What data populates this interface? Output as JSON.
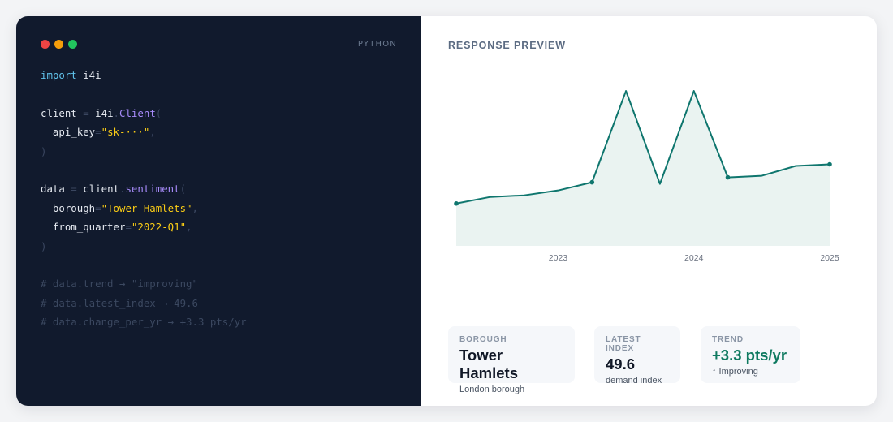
{
  "code_panel": {
    "language": "PYTHON",
    "lines": [
      [
        {
          "t": "import",
          "c": "kw"
        },
        {
          "t": " i4i",
          "c": ""
        }
      ],
      [],
      [
        {
          "t": "client",
          "c": ""
        },
        {
          "t": " = ",
          "c": "pn"
        },
        {
          "t": "i4i",
          "c": ""
        },
        {
          "t": ".",
          "c": "pn"
        },
        {
          "t": "Client",
          "c": "fn"
        },
        {
          "t": "(",
          "c": "pn"
        }
      ],
      [
        {
          "t": "  api_key",
          "c": ""
        },
        {
          "t": "=",
          "c": "pn"
        },
        {
          "t": "\"sk-···\"",
          "c": "str"
        },
        {
          "t": ",",
          "c": "pn"
        }
      ],
      [
        {
          "t": ")",
          "c": "pn"
        }
      ],
      [],
      [
        {
          "t": "data",
          "c": ""
        },
        {
          "t": " = ",
          "c": "pn"
        },
        {
          "t": "client",
          "c": ""
        },
        {
          "t": ".",
          "c": "pn"
        },
        {
          "t": "sentiment",
          "c": "fn"
        },
        {
          "t": "(",
          "c": "pn"
        }
      ],
      [
        {
          "t": "  borough",
          "c": ""
        },
        {
          "t": "=",
          "c": "pn"
        },
        {
          "t": "\"Tower Hamlets\"",
          "c": "str"
        },
        {
          "t": ",",
          "c": "pn"
        }
      ],
      [
        {
          "t": "  from_quarter",
          "c": ""
        },
        {
          "t": "=",
          "c": "pn"
        },
        {
          "t": "\"2022-Q1\"",
          "c": "str"
        },
        {
          "t": ",",
          "c": "pn"
        }
      ],
      [
        {
          "t": ")",
          "c": "pn"
        }
      ],
      [],
      [
        {
          "t": "# data.trend → \"improving\"",
          "c": "cm"
        }
      ],
      [
        {
          "t": "# data.latest_index → 49.6",
          "c": "cm"
        }
      ],
      [
        {
          "t": "# data.change_per_yr → +3.3 pts/yr",
          "c": "cm"
        }
      ]
    ]
  },
  "preview": {
    "title": "RESPONSE PREVIEW",
    "stats": [
      {
        "label": "BOROUGH",
        "value": "Tower Hamlets",
        "sub": "London borough"
      },
      {
        "label": "LATEST INDEX",
        "value": "49.6",
        "sub": "demand index"
      },
      {
        "label": "TREND",
        "value": "+3.3 pts/yr",
        "sub": "↑ Improving"
      }
    ]
  },
  "colors": {
    "line": "#0f766e",
    "area": "#eaf3f1",
    "trend_value": "#0f7a60"
  },
  "chart_data": {
    "type": "area",
    "x_ticks": [
      "2023",
      "2024",
      "2025"
    ],
    "x_tick_positions": [
      2023.25,
      2024.25,
      2025.25
    ],
    "xlim": [
      2022.5,
      2025.25
    ],
    "ylim": [
      0,
      100
    ],
    "x": [
      2022.5,
      2022.75,
      2023.0,
      2023.25,
      2023.5,
      2023.75,
      2024.0,
      2024.25,
      2024.5,
      2024.75,
      2025.0,
      2025.25
    ],
    "values": [
      26,
      30,
      31,
      34,
      39,
      95,
      38,
      95,
      42,
      43,
      49,
      50
    ],
    "marked_points": [
      0,
      4,
      8,
      11
    ]
  }
}
